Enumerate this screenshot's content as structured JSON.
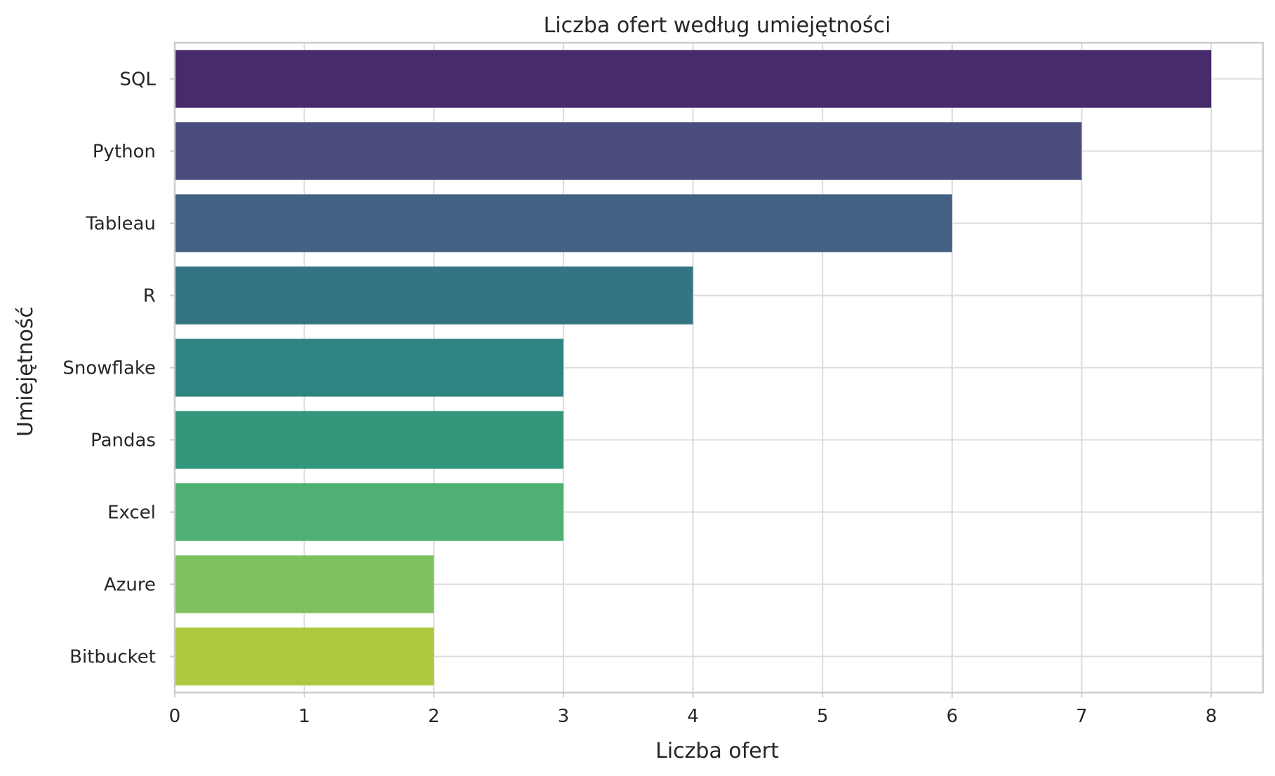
{
  "chart_data": {
    "type": "bar",
    "orientation": "horizontal",
    "title": "Liczba ofert według umiejętności",
    "xlabel": "Liczba ofert",
    "ylabel": "Umiejętność",
    "xlim": [
      0,
      8.4
    ],
    "xticks": [
      0,
      1,
      2,
      3,
      4,
      5,
      6,
      7,
      8
    ],
    "grid": true,
    "categories": [
      "SQL",
      "Python",
      "Tableau",
      "R",
      "Snowflake",
      "Pandas",
      "Excel",
      "Azure",
      "Bitbucket"
    ],
    "values": [
      8,
      7,
      6,
      4,
      3,
      3,
      3,
      2,
      2
    ],
    "colors": [
      "#482B6B",
      "#4B4D7E",
      "#426183",
      "#357483",
      "#2D8480",
      "#33977B",
      "#50B073",
      "#80C15F",
      "#ADC73F"
    ]
  }
}
